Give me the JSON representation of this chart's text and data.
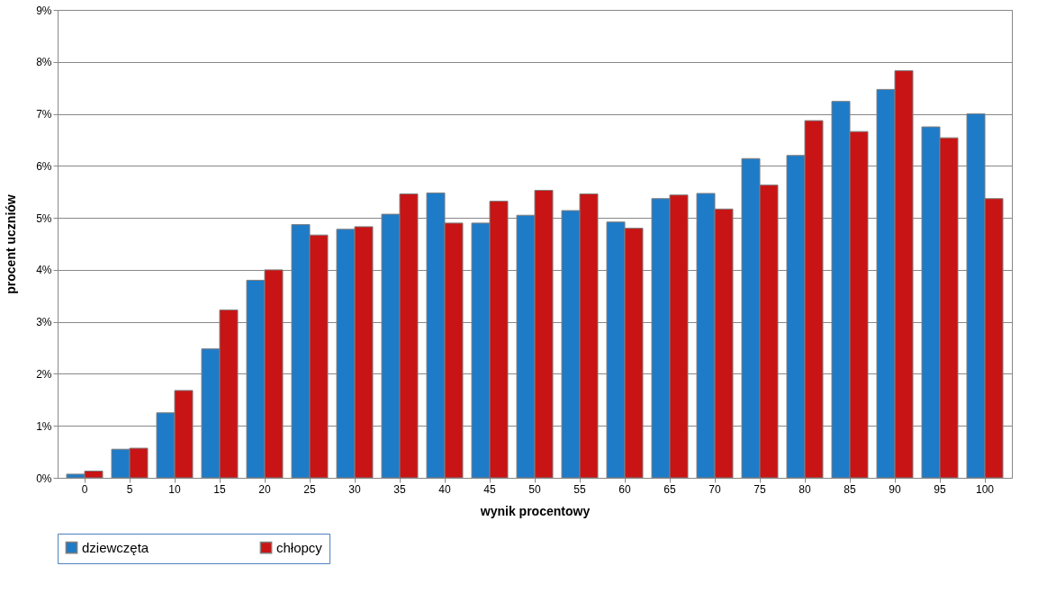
{
  "chart_data": {
    "type": "bar",
    "xlabel": "wynik procentowy",
    "ylabel": "procent uczniów",
    "categories": [
      "0",
      "5",
      "10",
      "15",
      "20",
      "25",
      "30",
      "35",
      "40",
      "45",
      "50",
      "55",
      "60",
      "65",
      "70",
      "75",
      "80",
      "85",
      "90",
      "95",
      "100"
    ],
    "series": [
      {
        "name": "dziewczęta",
        "color": "#1e7bc8",
        "values": [
          0.07,
          0.55,
          1.25,
          2.48,
          3.8,
          4.87,
          4.78,
          5.07,
          5.48,
          4.9,
          5.05,
          5.14,
          4.92,
          5.37,
          5.47,
          6.14,
          6.2,
          7.24,
          7.47,
          6.75,
          7.0
        ]
      },
      {
        "name": "chłopcy",
        "color": "#c81414",
        "values": [
          0.13,
          0.57,
          1.68,
          3.23,
          4.0,
          4.67,
          4.83,
          5.46,
          4.9,
          5.32,
          5.53,
          5.46,
          4.8,
          5.44,
          5.17,
          5.63,
          6.87,
          6.66,
          7.83,
          6.54,
          5.37
        ]
      }
    ],
    "ylim": [
      0,
      9
    ],
    "yticks": [
      {
        "value": 0,
        "label": "0%"
      },
      {
        "value": 1,
        "label": "1%"
      },
      {
        "value": 2,
        "label": "2%"
      },
      {
        "value": 3,
        "label": "3%"
      },
      {
        "value": 4,
        "label": "4%"
      },
      {
        "value": 5,
        "label": "5%"
      },
      {
        "value": 6,
        "label": "6%"
      },
      {
        "value": 7,
        "label": "7%"
      },
      {
        "value": 8,
        "label": "8%"
      },
      {
        "value": 9,
        "label": "9%"
      }
    ],
    "grid": "y",
    "legend": "bottom"
  }
}
